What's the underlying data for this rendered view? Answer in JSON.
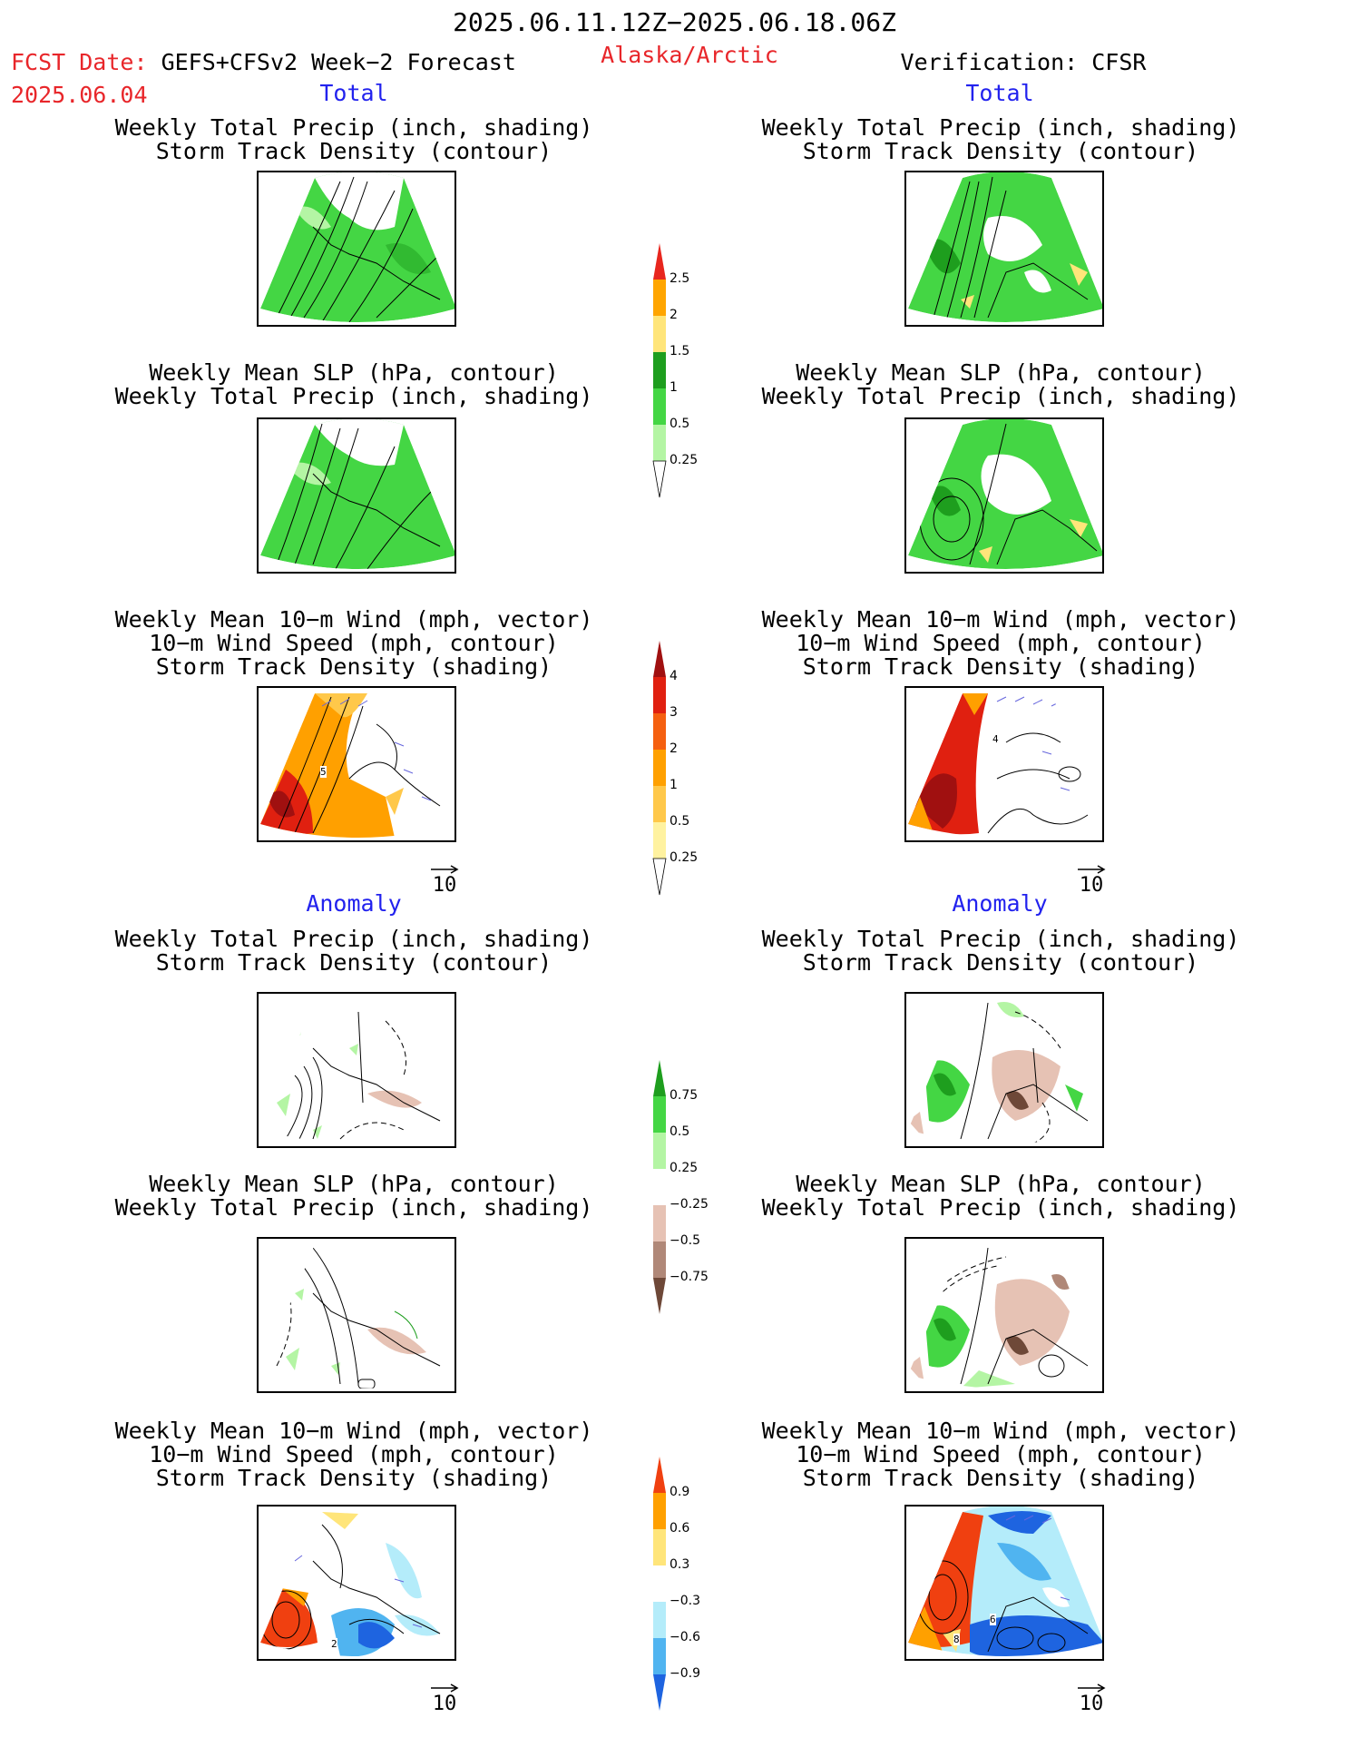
{
  "header": {
    "date_range": "2025.06.11.12Z−2025.06.18.06Z",
    "fcst_label": "FCST Date: ",
    "fcst_model": "GEFS+CFSv2 Week−2 Forecast",
    "fcst_date": "2025.06.04",
    "region": "Alaska/Arctic",
    "verification": "Verification: CFSR"
  },
  "sections": {
    "total": "Total",
    "anomaly": "Anomaly"
  },
  "titles": {
    "precip": [
      "Weekly Total Precip (inch, shading)",
      "Storm Track Density (contour)"
    ],
    "slp": [
      "Weekly Mean SLP (hPa, contour)",
      "Weekly Total Precip (inch, shading)"
    ],
    "wind": [
      "Weekly Mean 10−m Wind (mph, vector)",
      "10−m Wind Speed (mph, contour)",
      "Storm Track Density (shading)"
    ]
  },
  "vector_key": "10",
  "colorbars": {
    "precip_total": {
      "labels": [
        "2.5",
        "2",
        "1.5",
        "1",
        "0.5",
        "0.25"
      ],
      "colors": [
        "#e8261e",
        "#ffa500",
        "#ffe57a",
        "#1e9e1e",
        "#44d644",
        "#b4f5a4",
        "#ffffff"
      ]
    },
    "storm_total": {
      "labels": [
        "4",
        "3",
        "2",
        "1",
        "0.5",
        "0.25"
      ],
      "colors": [
        "#a01010",
        "#e02010",
        "#f56010",
        "#ffa000",
        "#ffc84a",
        "#fff2a0",
        "#ffffff"
      ]
    },
    "precip_anom": {
      "labels": [
        "0.75",
        "0.5",
        "0.25",
        "−0.25",
        "−0.5",
        "−0.75"
      ],
      "colors": [
        "#1e9e1e",
        "#44d644",
        "#b4f5a4",
        "#ffffff",
        "#e6c2b4",
        "#b08878",
        "#6e4838"
      ]
    },
    "storm_anom": {
      "labels": [
        "0.9",
        "0.6",
        "0.3",
        "−0.3",
        "−0.6",
        "−0.9"
      ],
      "colors": [
        "#f04010",
        "#ffa000",
        "#ffe57a",
        "#ffffff",
        "#b4ecfa",
        "#50b4f0",
        "#1e64e0"
      ]
    }
  },
  "panel_labels": {
    "wind_total_left": "5",
    "wind_total_right": "4",
    "wind_anom_left": "2",
    "wind_anom_right_a": "8",
    "wind_anom_right_b": "6"
  }
}
